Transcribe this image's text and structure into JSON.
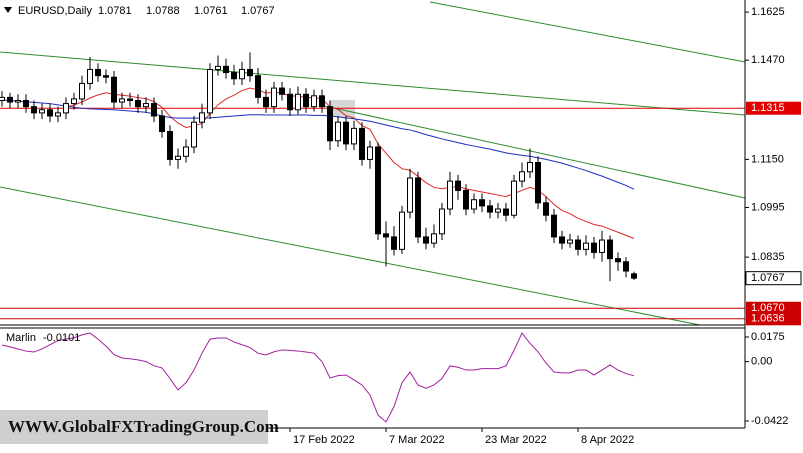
{
  "watermark": "WWW.GlobalFXTradingGroup.Com",
  "chart_data": [
    {
      "type": "candlestick",
      "title": "EURUSD,Daily",
      "categories": [
        null,
        null,
        null,
        null,
        null,
        null,
        null,
        null,
        null,
        null,
        null,
        null,
        null,
        null,
        null,
        null,
        null,
        null,
        null,
        null,
        null,
        null,
        null,
        null,
        null,
        null,
        null,
        null,
        null,
        null,
        null,
        null,
        null,
        null,
        null,
        null,
        "17 Feb 2022",
        null,
        null,
        null,
        null,
        null,
        null,
        null,
        null,
        null,
        null,
        null,
        "7 Mar 2022",
        null,
        null,
        null,
        null,
        null,
        null,
        null,
        null,
        null,
        null,
        null,
        "23 Mar 2022",
        null,
        null,
        null,
        null,
        null,
        null,
        null,
        null,
        null,
        null,
        null,
        "8 Apr 2022",
        null,
        null,
        null,
        null,
        null,
        null,
        null
      ],
      "open": [
        1.134,
        1.135,
        1.1335,
        1.134,
        1.132,
        1.13,
        1.131,
        1.129,
        1.13,
        1.133,
        1.1345,
        1.1395,
        1.144,
        1.142,
        1.1415,
        1.1335,
        1.1345,
        1.134,
        1.132,
        1.133,
        1.129,
        1.124,
        1.115,
        1.116,
        1.119,
        1.127,
        1.13,
        1.144,
        1.145,
        1.143,
        1.141,
        1.144,
        1.142,
        1.135,
        1.132,
        1.138,
        1.136,
        1.131,
        1.136,
        1.132,
        1.1355,
        1.132,
        1.121,
        1.127,
        1.12,
        1.125,
        1.115,
        1.119,
        1.091,
        1.09,
        1.086,
        1.098,
        1.109,
        1.09,
        1.088,
        1.091,
        1.099,
        1.108,
        1.105,
        1.099,
        1.102,
        1.1,
        1.098,
        1.099,
        1.097,
        1.108,
        1.111,
        1.114,
        1.101,
        1.097,
        1.09,
        1.088,
        1.089,
        1.086,
        1.088,
        1.085,
        1.089,
        1.083,
        1.082,
        1.0781
      ],
      "high": [
        1.137,
        1.1365,
        1.136,
        1.136,
        1.134,
        1.133,
        1.133,
        1.132,
        1.135,
        1.1365,
        1.142,
        1.148,
        1.146,
        1.144,
        1.1435,
        1.1365,
        1.1365,
        1.136,
        1.135,
        1.135,
        1.131,
        1.126,
        1.1185,
        1.1215,
        1.129,
        1.133,
        1.146,
        1.1485,
        1.1475,
        1.1455,
        1.1465,
        1.1495,
        1.1445,
        1.1375,
        1.14,
        1.14,
        1.138,
        1.1385,
        1.138,
        1.1375,
        1.1375,
        1.134,
        1.129,
        1.129,
        1.1275,
        1.127,
        1.121,
        1.1205,
        1.095,
        1.0935,
        1.1,
        1.112,
        1.111,
        1.093,
        1.094,
        1.101,
        1.111,
        1.11,
        1.107,
        1.104,
        1.104,
        1.102,
        1.101,
        1.101,
        1.11,
        1.114,
        1.1185,
        1.116,
        1.103,
        1.099,
        1.092,
        1.091,
        1.0905,
        1.0905,
        1.09,
        1.092,
        1.0905,
        1.085,
        1.0835,
        1.0788
      ],
      "low": [
        1.132,
        1.1315,
        1.1315,
        1.13,
        1.128,
        1.128,
        1.127,
        1.127,
        1.128,
        1.131,
        1.1325,
        1.1375,
        1.14,
        1.1395,
        1.1315,
        1.1315,
        1.132,
        1.13,
        1.13,
        1.127,
        1.122,
        1.113,
        1.112,
        1.114,
        1.117,
        1.125,
        1.128,
        1.142,
        1.141,
        1.139,
        1.139,
        1.14,
        1.133,
        1.13,
        1.13,
        1.134,
        1.129,
        1.1295,
        1.13,
        1.1305,
        1.13,
        1.118,
        1.119,
        1.118,
        1.118,
        1.113,
        1.112,
        1.089,
        1.0805,
        1.084,
        1.0845,
        1.096,
        1.088,
        1.086,
        1.0865,
        1.089,
        1.097,
        1.102,
        1.097,
        1.0975,
        1.098,
        1.096,
        1.096,
        1.095,
        1.096,
        1.106,
        1.109,
        1.099,
        1.095,
        1.088,
        1.086,
        1.0865,
        1.084,
        1.084,
        1.083,
        1.082,
        1.0757,
        1.079,
        1.077,
        1.0761
      ],
      "close": [
        1.135,
        1.1335,
        1.134,
        1.132,
        1.13,
        1.131,
        1.129,
        1.13,
        1.133,
        1.1345,
        1.1395,
        1.144,
        1.142,
        1.1415,
        1.1335,
        1.1345,
        1.134,
        1.132,
        1.133,
        1.129,
        1.124,
        1.115,
        1.116,
        1.119,
        1.127,
        1.13,
        1.144,
        1.145,
        1.143,
        1.141,
        1.144,
        1.142,
        1.135,
        1.132,
        1.138,
        1.136,
        1.131,
        1.136,
        1.132,
        1.1355,
        1.132,
        1.121,
        1.127,
        1.12,
        1.125,
        1.115,
        1.119,
        1.091,
        1.09,
        1.086,
        1.098,
        1.109,
        1.09,
        1.088,
        1.091,
        1.099,
        1.108,
        1.105,
        1.099,
        1.102,
        1.1,
        1.098,
        1.099,
        1.097,
        1.108,
        1.111,
        1.114,
        1.101,
        1.097,
        1.09,
        1.088,
        1.089,
        1.086,
        1.088,
        1.085,
        1.089,
        1.083,
        1.082,
        1.079,
        1.0767
      ],
      "bull_color": "#ffffff",
      "bear_color": "#000000",
      "lines": [
        {
          "color": "#e02828",
          "values": [
            null,
            null,
            null,
            null,
            null,
            null,
            null,
            null,
            1.132,
            1.1325,
            1.1335,
            1.1348,
            1.1358,
            1.1365,
            1.136,
            1.1357,
            1.1354,
            1.1349,
            1.1346,
            1.1336,
            1.1318,
            1.1289,
            1.1267,
            1.1253,
            1.1258,
            1.1266,
            1.1299,
            1.1326,
            1.1345,
            1.1357,
            1.1372,
            1.138,
            1.1374,
            1.1364,
            1.1366,
            1.1364,
            1.1354,
            1.1355,
            1.1349,
            1.135,
            1.1345,
            1.132,
            1.1311,
            1.1291,
            1.1284,
            1.1259,
            1.1247,
            1.12,
            1.117,
            1.114,
            1.112,
            1.1115,
            1.1095,
            1.1075,
            1.106,
            1.1055,
            1.106,
            1.1062,
            1.1055,
            1.105,
            1.1045,
            1.104,
            1.1035,
            1.103,
            1.104,
            1.105,
            1.106,
            1.105,
            1.103,
            1.1005,
            1.0985,
            1.0975,
            1.096,
            1.095,
            1.094,
            1.0935,
            1.0925,
            1.0915,
            1.0905,
            1.0895
          ]
        },
        {
          "color": "#1c2fc0",
          "values": [
            1.1341,
            1.134,
            1.1338,
            1.1336,
            1.1334,
            1.1332,
            1.133,
            1.1326,
            1.1322,
            1.1318,
            1.1315,
            1.1313,
            1.1312,
            1.1311,
            1.131,
            1.1308,
            1.1306,
            1.1304,
            1.1302,
            1.1297,
            1.129,
            1.1285,
            1.1283,
            1.1283,
            1.1283,
            1.1283,
            1.1284,
            1.1286,
            1.1288,
            1.129,
            1.1292,
            1.1294,
            1.1294,
            1.1293,
            1.1293,
            1.1293,
            1.1293,
            1.1293,
            1.1293,
            1.1292,
            1.1292,
            1.129,
            1.1287,
            1.1284,
            1.1281,
            1.1277,
            1.1273,
            1.1267,
            1.1261,
            1.1255,
            1.1249,
            1.1245,
            1.1238,
            1.123,
            1.1223,
            1.1216,
            1.121,
            1.1204,
            1.1198,
            1.1193,
            1.1188,
            1.1183,
            1.1177,
            1.1171,
            1.1167,
            1.1163,
            1.116,
            1.1155,
            1.115,
            1.1144,
            1.1138,
            1.113,
            1.1122,
            1.1114,
            1.1105,
            1.1096,
            1.1086,
            1.1076,
            1.1066,
            1.1054
          ]
        }
      ],
      "levels": [
        {
          "value": 1.1315,
          "label": "1.1315",
          "color": "#e00000"
        },
        {
          "value": 1.067,
          "label": "1.0670",
          "color": "#cc0000"
        },
        {
          "value": 1.0636,
          "label": "1.0636",
          "color": "#cc0000"
        }
      ],
      "ylim": [
        1.0616,
        1.1664
      ],
      "yticks": [
        1.1625,
        {
          "value": 1.147,
          "label": "1.1470"
        },
        {
          "value": 1.115,
          "label": "1.1150"
        },
        1.0995,
        1.0835
      ]
    },
    {
      "type": "line",
      "title": "Marlin",
      "color": "#a020a0",
      "values": [
        0.0118,
        0.0105,
        0.009,
        0.0075,
        0.0068,
        0.009,
        0.012,
        0.015,
        0.016,
        0.017,
        0.019,
        0.0203,
        0.016,
        0.011,
        0.005,
        0.0026,
        0.002,
        0.0012,
        0.0,
        -0.003,
        -0.0045,
        -0.012,
        -0.0202,
        -0.015,
        -0.006,
        0.006,
        0.016,
        0.0168,
        0.0168,
        0.014,
        0.012,
        0.01,
        0.006,
        0.0047,
        0.007,
        0.0083,
        0.008,
        0.0075,
        0.0068,
        0.006,
        0.0,
        -0.0116,
        -0.01,
        -0.0095,
        -0.013,
        -0.0166,
        -0.0237,
        -0.038,
        -0.0429,
        -0.032,
        -0.015,
        -0.0074,
        -0.0166,
        -0.019,
        -0.0166,
        -0.012,
        -0.003,
        -0.004,
        -0.006,
        -0.006,
        -0.005,
        -0.005,
        -0.005,
        -0.003,
        0.008,
        0.0203,
        0.013,
        0.007,
        -0.001,
        -0.0074,
        -0.008,
        -0.008,
        -0.006,
        -0.006,
        -0.0095,
        -0.006,
        -0.0024,
        -0.006,
        -0.0085,
        -0.0101
      ],
      "ylim": [
        -0.0472,
        0.0239
      ],
      "yticks": [
        0.0175,
        {
          "value": 0,
          "label": "0.00"
        },
        -0.0422
      ]
    }
  ]
}
